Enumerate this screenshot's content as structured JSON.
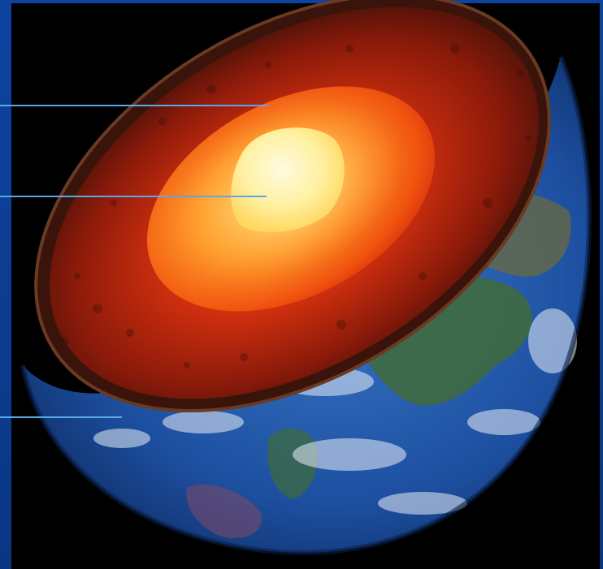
{
  "figure": {
    "subject": "Earth cutaway",
    "colors": {
      "frame": "#0b3a8c",
      "panel": "#000000",
      "ocean": "#1d4fa0",
      "land": "#3c6b3a",
      "crust": "#4a1a0c",
      "mantle": "#b3200c",
      "outer_core": "#f26514",
      "inner_core": "#fff3a8",
      "pointer_line": "#5aa8e8"
    }
  },
  "pointers": [
    {
      "name": "pointer-mantle"
    },
    {
      "name": "pointer-inner-core"
    },
    {
      "name": "pointer-crust"
    }
  ]
}
